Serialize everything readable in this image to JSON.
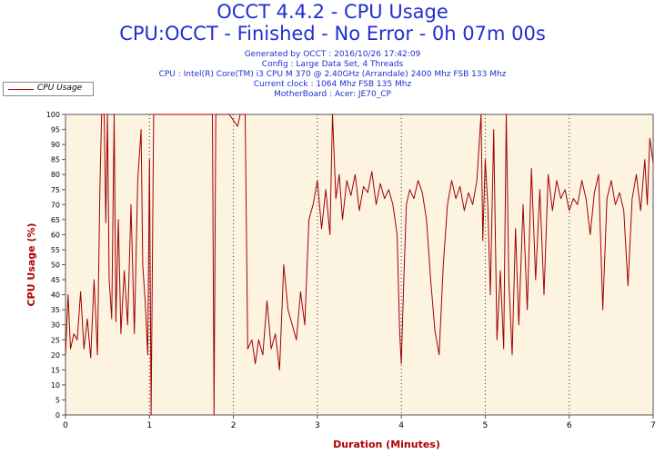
{
  "title": "OCCT 4.4.2 - CPU Usage",
  "subtitle": "CPU:OCCT - Finished - No Error - 0h 07m 00s",
  "info_lines": [
    "Generated by OCCT : 2016/10/26 17:42:09",
    "Config : Large Data Set, 4 Threads",
    "CPU : Intel(R) Core(TM) i3 CPU M 370 @ 2.40GHz (Arrandale) 2400 Mhz FSB 133 Mhz",
    "Current clock : 1064 Mhz FSB 135 Mhz",
    "MotherBoard : Acer: JE70_CP"
  ],
  "legend_label": "CPU Usage",
  "colors": {
    "line": "#a00000",
    "plot_bg": "#fdf3e1",
    "title": "#1f2fd0",
    "axis_label": "#b00000"
  },
  "chart_data": {
    "type": "line",
    "xlabel": "Duration (Minutes)",
    "ylabel": "CPU Usage (%)",
    "xlim": [
      0,
      7
    ],
    "ylim": [
      0,
      100
    ],
    "x_ticks": [
      "0",
      "1",
      "2",
      "3",
      "4",
      "5",
      "6",
      "7"
    ],
    "y_ticks": [
      "0",
      "5",
      "10",
      "15",
      "20",
      "25",
      "30",
      "35",
      "40",
      "45",
      "50",
      "55",
      "60",
      "65",
      "70",
      "75",
      "80",
      "85",
      "90",
      "95",
      "100"
    ],
    "grid": "vertical dotted lines at each minute",
    "legend": "top-left",
    "series": [
      {
        "name": "CPU Usage",
        "points": [
          [
            0.0,
            20
          ],
          [
            0.03,
            40
          ],
          [
            0.06,
            22
          ],
          [
            0.1,
            27
          ],
          [
            0.14,
            25
          ],
          [
            0.18,
            41
          ],
          [
            0.22,
            22
          ],
          [
            0.26,
            32
          ],
          [
            0.3,
            19
          ],
          [
            0.34,
            45
          ],
          [
            0.38,
            20
          ],
          [
            0.41,
            75
          ],
          [
            0.43,
            100
          ],
          [
            0.46,
            100
          ],
          [
            0.48,
            64
          ],
          [
            0.5,
            100
          ],
          [
            0.52,
            45
          ],
          [
            0.55,
            32
          ],
          [
            0.58,
            100
          ],
          [
            0.6,
            31
          ],
          [
            0.63,
            65
          ],
          [
            0.66,
            27
          ],
          [
            0.7,
            48
          ],
          [
            0.74,
            30
          ],
          [
            0.78,
            70
          ],
          [
            0.82,
            27
          ],
          [
            0.86,
            78
          ],
          [
            0.9,
            95
          ],
          [
            0.92,
            50
          ],
          [
            0.95,
            37
          ],
          [
            0.98,
            20
          ],
          [
            1.0,
            85
          ],
          [
            1.02,
            0
          ],
          [
            1.05,
            100
          ],
          [
            1.1,
            100
          ],
          [
            1.2,
            100
          ],
          [
            1.35,
            100
          ],
          [
            1.5,
            100
          ],
          [
            1.65,
            100
          ],
          [
            1.75,
            100
          ],
          [
            1.77,
            0
          ],
          [
            1.79,
            100
          ],
          [
            1.85,
            100
          ],
          [
            1.95,
            100
          ],
          [
            2.05,
            96
          ],
          [
            2.08,
            100
          ],
          [
            2.14,
            100
          ],
          [
            2.17,
            22
          ],
          [
            2.22,
            25
          ],
          [
            2.26,
            17
          ],
          [
            2.3,
            25
          ],
          [
            2.35,
            20
          ],
          [
            2.4,
            38
          ],
          [
            2.45,
            22
          ],
          [
            2.5,
            27
          ],
          [
            2.55,
            15
          ],
          [
            2.6,
            50
          ],
          [
            2.65,
            35
          ],
          [
            2.7,
            30
          ],
          [
            2.75,
            25
          ],
          [
            2.8,
            41
          ],
          [
            2.85,
            30
          ],
          [
            2.9,
            65
          ],
          [
            2.95,
            70
          ],
          [
            3.0,
            78
          ],
          [
            3.05,
            62
          ],
          [
            3.1,
            75
          ],
          [
            3.15,
            60
          ],
          [
            3.18,
            100
          ],
          [
            3.22,
            72
          ],
          [
            3.26,
            80
          ],
          [
            3.3,
            65
          ],
          [
            3.35,
            78
          ],
          [
            3.4,
            73
          ],
          [
            3.45,
            80
          ],
          [
            3.5,
            68
          ],
          [
            3.55,
            76
          ],
          [
            3.6,
            74
          ],
          [
            3.65,
            81
          ],
          [
            3.7,
            70
          ],
          [
            3.75,
            77
          ],
          [
            3.8,
            72
          ],
          [
            3.85,
            75
          ],
          [
            3.9,
            70
          ],
          [
            3.95,
            60
          ],
          [
            3.98,
            28
          ],
          [
            4.0,
            17
          ],
          [
            4.03,
            45
          ],
          [
            4.06,
            70
          ],
          [
            4.1,
            75
          ],
          [
            4.15,
            72
          ],
          [
            4.2,
            78
          ],
          [
            4.25,
            74
          ],
          [
            4.3,
            65
          ],
          [
            4.35,
            45
          ],
          [
            4.4,
            28
          ],
          [
            4.45,
            20
          ],
          [
            4.5,
            50
          ],
          [
            4.55,
            70
          ],
          [
            4.6,
            78
          ],
          [
            4.65,
            72
          ],
          [
            4.7,
            76
          ],
          [
            4.75,
            68
          ],
          [
            4.8,
            74
          ],
          [
            4.85,
            70
          ],
          [
            4.9,
            78
          ],
          [
            4.95,
            100
          ],
          [
            4.97,
            58
          ],
          [
            5.0,
            85
          ],
          [
            5.03,
            70
          ],
          [
            5.06,
            40
          ],
          [
            5.1,
            95
          ],
          [
            5.14,
            25
          ],
          [
            5.18,
            48
          ],
          [
            5.22,
            22
          ],
          [
            5.25,
            100
          ],
          [
            5.28,
            45
          ],
          [
            5.32,
            20
          ],
          [
            5.36,
            62
          ],
          [
            5.4,
            30
          ],
          [
            5.45,
            70
          ],
          [
            5.5,
            35
          ],
          [
            5.55,
            82
          ],
          [
            5.6,
            45
          ],
          [
            5.65,
            75
          ],
          [
            5.7,
            40
          ],
          [
            5.75,
            80
          ],
          [
            5.8,
            68
          ],
          [
            5.85,
            78
          ],
          [
            5.9,
            72
          ],
          [
            5.95,
            75
          ],
          [
            6.0,
            68
          ],
          [
            6.05,
            72
          ],
          [
            6.1,
            70
          ],
          [
            6.15,
            78
          ],
          [
            6.2,
            72
          ],
          [
            6.25,
            60
          ],
          [
            6.3,
            74
          ],
          [
            6.35,
            80
          ],
          [
            6.4,
            35
          ],
          [
            6.45,
            72
          ],
          [
            6.5,
            78
          ],
          [
            6.55,
            70
          ],
          [
            6.6,
            74
          ],
          [
            6.65,
            68
          ],
          [
            6.7,
            43
          ],
          [
            6.75,
            72
          ],
          [
            6.8,
            80
          ],
          [
            6.85,
            68
          ],
          [
            6.9,
            85
          ],
          [
            6.93,
            70
          ],
          [
            6.96,
            92
          ],
          [
            7.0,
            84
          ]
        ]
      }
    ]
  }
}
